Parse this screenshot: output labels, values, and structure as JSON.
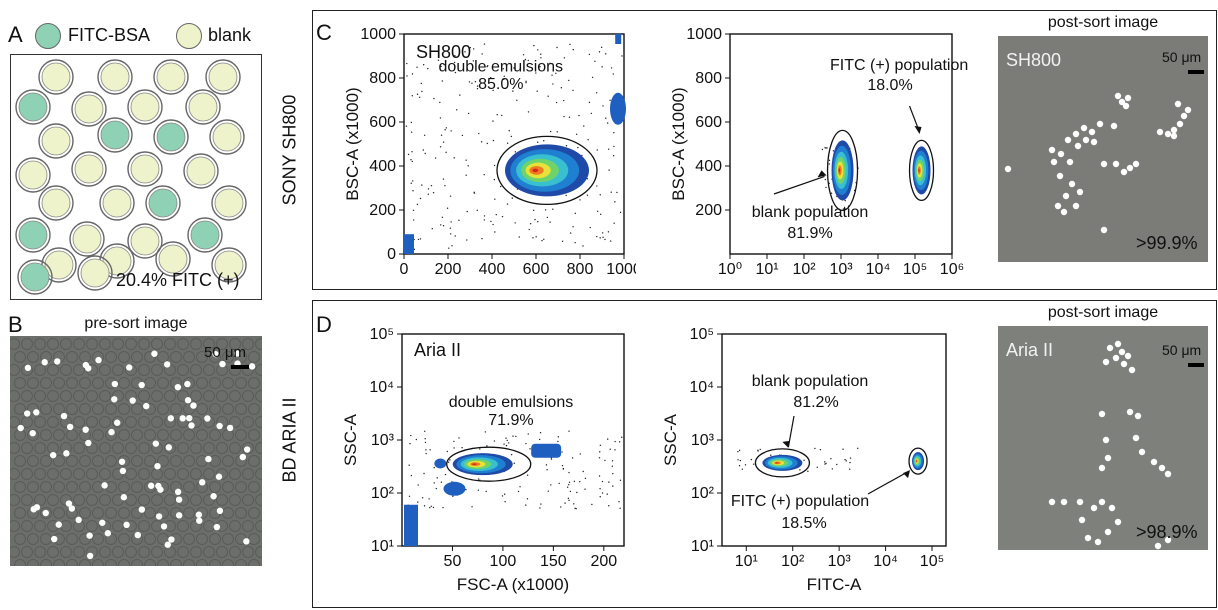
{
  "panel_a": {
    "letter": "A",
    "legend": [
      {
        "label": "FITC-BSA",
        "color": "#8fd1b4"
      },
      {
        "label": "blank",
        "color": "#eef3cc"
      }
    ],
    "caption": "20.4% FITC (+)"
  },
  "panel_b": {
    "letter": "B",
    "title": "pre-sort image",
    "scale": "50 μm"
  },
  "panel_c": {
    "letter": "C",
    "row_label": "SONY SH800",
    "plot1": {
      "instrument": "SH800",
      "xlabel": "",
      "ylabel": "BSC-A (x1000)",
      "gate_label": "double emulsions",
      "gate_pct": "85.0%"
    },
    "plot2": {
      "ylabel": "BSC-A (x1000)",
      "pos_label": "FITC (+) population",
      "pos_pct": "18.0%",
      "neg_label": "blank population",
      "neg_pct": "81.9%"
    },
    "image": {
      "title": "post-sort image",
      "instrument": "SH800",
      "scale": "50 μm",
      "purity": ">99.9%"
    }
  },
  "panel_d": {
    "letter": "D",
    "row_label": "BD ARIA II",
    "plot1": {
      "instrument": "Aria II",
      "xlabel": "FSC-A (x1000)",
      "ylabel": "SSC-A",
      "gate_label": "double emulsions",
      "gate_pct": "71.9%"
    },
    "plot2": {
      "xlabel": "FITC-A",
      "ylabel": "SSC-A",
      "neg_label": "blank population",
      "neg_pct": "81.2%",
      "pos_label": "FITC (+)  population",
      "pos_pct": "18.5%"
    },
    "image": {
      "title": "post-sort image",
      "instrument": "Aria II",
      "scale": "50 μm",
      "purity": ">98.9%"
    }
  },
  "chart_data": [
    {
      "type": "scatter",
      "title": "SH800",
      "xlabel": "",
      "ylabel": "BSC-A (x1000)",
      "xlim": [
        0,
        1000
      ],
      "ylim": [
        0,
        1000
      ],
      "x_ticks": [
        "0",
        "200",
        "400",
        "600",
        "800",
        "1000"
      ],
      "y_ticks": [
        "0",
        "200",
        "400",
        "600",
        "800",
        "1000"
      ],
      "populations": [
        {
          "name": "double emulsions",
          "percent": 85.0,
          "center": [
            650,
            380
          ]
        }
      ]
    },
    {
      "type": "scatter",
      "xlabel": "",
      "ylabel": "BSC-A (x1000)",
      "x_scale": "log",
      "xlim": [
        1,
        1000000
      ],
      "ylim": [
        0,
        1000
      ],
      "x_ticks": [
        "10⁰",
        "10¹",
        "10²",
        "10³",
        "10⁴",
        "10⁵",
        "10⁶"
      ],
      "y_ticks": [
        "200",
        "400",
        "600",
        "800",
        "1000"
      ],
      "populations": [
        {
          "name": "FITC (+) population",
          "percent": 18.0,
          "center": [
            150000,
            380
          ]
        },
        {
          "name": "blank population",
          "percent": 81.9,
          "center": [
            1100,
            380
          ]
        }
      ]
    },
    {
      "type": "scatter",
      "title": "Aria II",
      "xlabel": "FSC-A (x1000)",
      "ylabel": "SSC-A",
      "y_scale": "log",
      "xlim": [
        0,
        220
      ],
      "ylim": [
        10,
        100000
      ],
      "x_ticks": [
        "50",
        "100",
        "150",
        "200"
      ],
      "y_ticks": [
        "10¹",
        "10²",
        "10³",
        "10⁴",
        "10⁵"
      ],
      "populations": [
        {
          "name": "double emulsions",
          "percent": 71.9,
          "center": [
            80,
            350
          ]
        }
      ]
    },
    {
      "type": "scatter",
      "xlabel": "FITC-A",
      "ylabel": "SSC-A",
      "x_scale": "log",
      "y_scale": "log",
      "xlim": [
        3,
        200000
      ],
      "ylim": [
        10,
        100000
      ],
      "x_ticks": [
        "10¹",
        "10²",
        "10³",
        "10⁴",
        "10⁵"
      ],
      "y_ticks": [
        "10¹",
        "10²",
        "10³",
        "10⁴",
        "10⁵"
      ],
      "populations": [
        {
          "name": "blank population",
          "percent": 81.2,
          "center": [
            60,
            370
          ]
        },
        {
          "name": "FITC (+) population",
          "percent": 18.5,
          "center": [
            50000,
            400
          ]
        }
      ]
    }
  ]
}
